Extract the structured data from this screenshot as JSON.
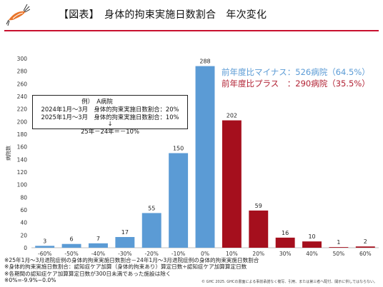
{
  "header": {
    "title": "【図表】　身体的拘束実施日数割合　年次変化",
    "logo": "shrimp-logo",
    "accent_color": "#c8102e"
  },
  "legend": {
    "minus": "前年度比マイナス：526病院（64.5%）",
    "plus": "前年度比プラス　：290病院（35.5%）"
  },
  "example_box": {
    "line1": "例）　A病院",
    "line2": "2024年1月～3月　身体的拘束実施日数割合：20%",
    "line3": "2025年1月～3月　身体的拘束実施日数割合：10%",
    "arrow": "↓",
    "formula": "25年－24年＝－10%"
  },
  "chart_data": {
    "type": "bar",
    "ylabel": "病院数",
    "ylim": [
      0,
      300
    ],
    "yticks": [
      0,
      20,
      40,
      60,
      80,
      100,
      120,
      140,
      160,
      180,
      200,
      220,
      240,
      260,
      280,
      300
    ],
    "categories": [
      "-60%",
      "-50%",
      "-40%",
      "-30%",
      "-20%",
      "-10%",
      "0%",
      "10%",
      "20%",
      "30%",
      "40%",
      "50%",
      "60%"
    ],
    "values": [
      3,
      6,
      7,
      17,
      55,
      150,
      288,
      202,
      59,
      16,
      10,
      1,
      2
    ],
    "colors": {
      "minus": "#5b9bd5",
      "plus": "#a50f1d"
    },
    "plus_start_index": 7,
    "grid": false
  },
  "notes": [
    "※25年1月～3月退院症例の身体的拘束実施日数割合－24年1月～3月退院症例の身体的拘束実施日数割合",
    "※身体的拘束実施日数割合：認知症ケア加算（身体的拘束あり）算定日数÷認知症ケア加算算定日数",
    "※各期間の認知症ケア加算算定日数が300日未満であった施設は除く",
    "※0%=-9.9%~0.0%"
  ],
  "copyright": "© GHC 2025. GHCの書面による事前承諾なく複写、引用、または第三者へ配付、開示に供してはならない。"
}
